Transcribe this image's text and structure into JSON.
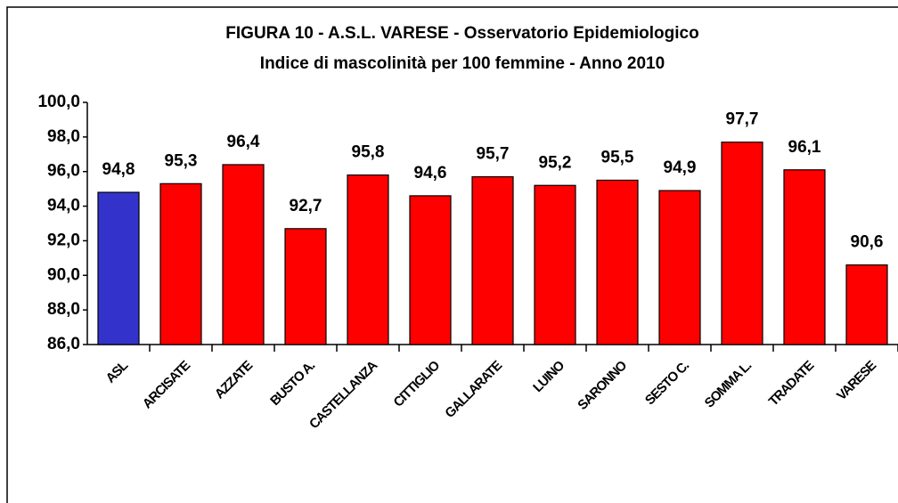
{
  "chart_data": {
    "type": "bar",
    "title": "FIGURA 10 - A.S.L.  VARESE - Osservatorio Epidemiologico",
    "subtitle": "Indice di mascolinità per 100 femmine - Anno 2010",
    "categories": [
      "ASL",
      "ARCISATE",
      "AZZATE",
      "BUSTO A.",
      "CASTELLANZA",
      "CITTIGLIO",
      "GALLARATE",
      "LUINO",
      "SARONNO",
      "SESTO C.",
      "SOMMA L.",
      "TRADATE",
      "VARESE"
    ],
    "values": [
      94.8,
      95.3,
      96.4,
      92.7,
      95.8,
      94.6,
      95.7,
      95.2,
      95.5,
      94.9,
      97.7,
      96.1,
      90.6
    ],
    "value_labels": [
      "94,8",
      "95,3",
      "96,4",
      "92,7",
      "95,8",
      "94,6",
      "95,7",
      "95,2",
      "95,5",
      "94,9",
      "97,7",
      "96,1",
      "90,6"
    ],
    "colors": [
      "#3333cc",
      "#ff0000",
      "#ff0000",
      "#ff0000",
      "#ff0000",
      "#ff0000",
      "#ff0000",
      "#ff0000",
      "#ff0000",
      "#ff0000",
      "#ff0000",
      "#ff0000",
      "#ff0000"
    ],
    "ylim": [
      86,
      100
    ],
    "yticks": [
      {
        "value": 86,
        "label": "86,0"
      },
      {
        "value": 88,
        "label": "88,0"
      },
      {
        "value": 90,
        "label": "90,0"
      },
      {
        "value": 92,
        "label": "92,0"
      },
      {
        "value": 94,
        "label": "94,0"
      },
      {
        "value": 96,
        "label": "96,0"
      },
      {
        "value": 98,
        "label": "98,0"
      },
      {
        "value": 100,
        "label": "100,0"
      }
    ],
    "grid": false
  }
}
